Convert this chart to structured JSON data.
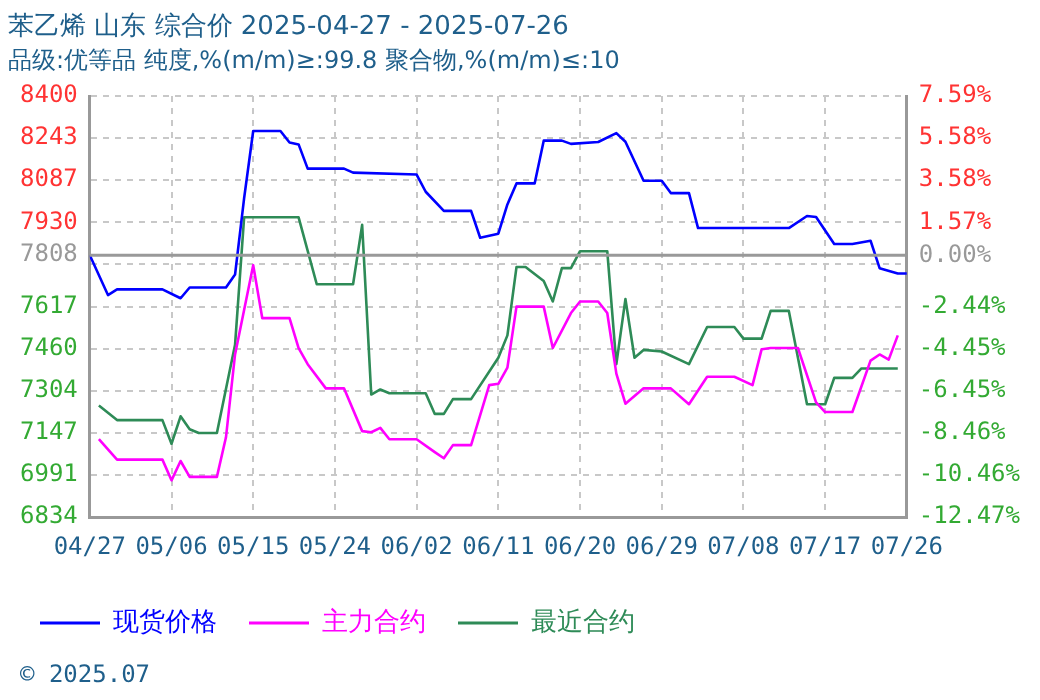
{
  "chart_data": {
    "type": "line",
    "title": "苯乙烯 山东 综合价 2025-04-27 - 2025-07-26",
    "subtitle": "品级:优等品 纯度,%(m/m)≥:99.8 聚合物,%(m/m)≤:10",
    "xlim": [
      "2025-04-27",
      "2025-07-26"
    ],
    "xticks": [
      {
        "value": "2025-04-27",
        "label": "04/27"
      },
      {
        "value": "2025-05-06",
        "label": "05/06"
      },
      {
        "value": "2025-05-15",
        "label": "05/15"
      },
      {
        "value": "2025-05-24",
        "label": "05/24"
      },
      {
        "value": "2025-06-02",
        "label": "06/02"
      },
      {
        "value": "2025-06-11",
        "label": "06/11"
      },
      {
        "value": "2025-06-20",
        "label": "06/20"
      },
      {
        "value": "2025-06-29",
        "label": "06/29"
      },
      {
        "value": "2025-07-08",
        "label": "07/08"
      },
      {
        "value": "2025-07-17",
        "label": "07/17"
      },
      {
        "value": "2025-07-26",
        "label": "07/26"
      }
    ],
    "ylim": [
      6834,
      8400
    ],
    "yticks": [
      6834,
      6991,
      7147,
      7304,
      7460,
      7617,
      {
        "value": 7774,
        "label": null
      },
      7930,
      8087,
      8243,
      8400
    ],
    "y2lim": [
      -12.47,
      7.59
    ],
    "y2ticks": [
      {
        "value": -12.47,
        "label": "-12.47%"
      },
      {
        "value": -10.46,
        "label": "-10.46%"
      },
      {
        "value": -8.46,
        "label": "-8.46%"
      },
      {
        "value": -6.45,
        "label": "-6.45%"
      },
      {
        "value": -4.45,
        "label": "-4.45%"
      },
      {
        "value": -2.44,
        "label": "-2.44%"
      },
      {
        "value": 0,
        "label": "0.00%"
      },
      {
        "value": 1.57,
        "label": "1.57%"
      },
      {
        "value": 3.58,
        "label": "3.58%"
      },
      {
        "value": 5.58,
        "label": "5.58%"
      },
      {
        "value": 7.59,
        "label": "7.59%"
      }
    ],
    "ref_lines": [
      {
        "axis": "y",
        "value": 7808,
        "label": "7808",
        "color": "#999999"
      }
    ],
    "grid": true,
    "legend": "bottom",
    "marker": "none",
    "line_style": "solid",
    "annotations": [
      "© 2025.07"
    ],
    "series": [
      {
        "name": "现货价格",
        "color": "#0000ff",
        "x": [
          "2025-04-27",
          "2025-04-29",
          "2025-04-30",
          "2025-05-05",
          "2025-05-07",
          "2025-05-08",
          "2025-05-12",
          "2025-05-13",
          "2025-05-14",
          "2025-05-15",
          "2025-05-18",
          "2025-05-19",
          "2025-05-20",
          "2025-05-21",
          "2025-05-25",
          "2025-05-26",
          "2025-06-02",
          "2025-06-03",
          "2025-06-05",
          "2025-06-08",
          "2025-06-09",
          "2025-06-11",
          "2025-06-12",
          "2025-06-13",
          "2025-06-15",
          "2025-06-16",
          "2025-06-18",
          "2025-06-19",
          "2025-06-22",
          "2025-06-24",
          "2025-06-25",
          "2025-06-27",
          "2025-06-29",
          "2025-06-30",
          "2025-07-02",
          "2025-07-03",
          "2025-07-13",
          "2025-07-15",
          "2025-07-16",
          "2025-07-18",
          "2025-07-20",
          "2025-07-22",
          "2025-07-23",
          "2025-07-25",
          "2025-07-26"
        ],
        "values": [
          7808,
          7660,
          7681,
          7681,
          7648,
          7688,
          7688,
          7736,
          8020,
          8270,
          8270,
          8227,
          8220,
          8130,
          8130,
          8115,
          8108,
          8044,
          7973,
          7973,
          7873,
          7888,
          7997,
          8075,
          8075,
          8234,
          8234,
          8222,
          8229,
          8262,
          8230,
          8085,
          8085,
          8039,
          8039,
          7909,
          7909,
          7954,
          7950,
          7850,
          7850,
          7862,
          7760,
          7740,
          7740
        ]
      },
      {
        "name": "主力合约",
        "color": "#ff00ff",
        "x": [
          "2025-04-28",
          "2025-04-30",
          "2025-05-05",
          "2025-05-06",
          "2025-05-07",
          "2025-05-08",
          "2025-05-11",
          "2025-05-12",
          "2025-05-13",
          "2025-05-15",
          "2025-05-16",
          "2025-05-19",
          "2025-05-20",
          "2025-05-21",
          "2025-05-23",
          "2025-05-25",
          "2025-05-27",
          "2025-05-28",
          "2025-05-29",
          "2025-05-30",
          "2025-06-02",
          "2025-06-04",
          "2025-06-05",
          "2025-06-06",
          "2025-06-08",
          "2025-06-10",
          "2025-06-11",
          "2025-06-12",
          "2025-06-13",
          "2025-06-16",
          "2025-06-17",
          "2025-06-19",
          "2025-06-20",
          "2025-06-22",
          "2025-06-23",
          "2025-06-24",
          "2025-06-25",
          "2025-06-27",
          "2025-06-30",
          "2025-07-02",
          "2025-07-04",
          "2025-07-07",
          "2025-07-09",
          "2025-07-10",
          "2025-07-11",
          "2025-07-14",
          "2025-07-16",
          "2025-07-17",
          "2025-07-20",
          "2025-07-22",
          "2025-07-23",
          "2025-07-24",
          "2025-07-25"
        ],
        "values": [
          7124,
          7048,
          7048,
          6971,
          7043,
          6984,
          6984,
          7131,
          7439,
          7771,
          7574,
          7574,
          7463,
          7403,
          7313,
          7313,
          7154,
          7150,
          7166,
          7124,
          7124,
          7076,
          7053,
          7102,
          7102,
          7325,
          7330,
          7390,
          7617,
          7617,
          7463,
          7593,
          7636,
          7636,
          7593,
          7368,
          7256,
          7313,
          7313,
          7254,
          7356,
          7356,
          7325,
          7458,
          7463,
          7463,
          7261,
          7225,
          7225,
          7416,
          7439,
          7420,
          7510
        ]
      },
      {
        "name": "最近合约",
        "color": "#2e8b57",
        "x": [
          "2025-04-28",
          "2025-04-30",
          "2025-05-05",
          "2025-05-06",
          "2025-05-07",
          "2025-05-08",
          "2025-05-09",
          "2025-05-11",
          "2025-05-13",
          "2025-05-14",
          "2025-05-20",
          "2025-05-22",
          "2025-05-26",
          "2025-05-27",
          "2025-05-28",
          "2025-05-29",
          "2025-05-30",
          "2025-06-03",
          "2025-06-04",
          "2025-06-05",
          "2025-06-06",
          "2025-06-08",
          "2025-06-11",
          "2025-06-12",
          "2025-06-13",
          "2025-06-14",
          "2025-06-16",
          "2025-06-17",
          "2025-06-18",
          "2025-06-19",
          "2025-06-20",
          "2025-06-23",
          "2025-06-24",
          "2025-06-25",
          "2025-06-26",
          "2025-06-27",
          "2025-06-29",
          "2025-07-02",
          "2025-07-04",
          "2025-07-07",
          "2025-07-08",
          "2025-07-10",
          "2025-07-11",
          "2025-07-13",
          "2025-07-15",
          "2025-07-17",
          "2025-07-18",
          "2025-07-20",
          "2025-07-21",
          "2025-07-25"
        ],
        "values": [
          7249,
          7195,
          7195,
          7107,
          7209,
          7161,
          7147,
          7147,
          7475,
          7949,
          7949,
          7700,
          7700,
          7921,
          7290,
          7309,
          7295,
          7295,
          7218,
          7218,
          7273,
          7273,
          7427,
          7510,
          7764,
          7764,
          7712,
          7636,
          7760,
          7760,
          7823,
          7823,
          7403,
          7645,
          7427,
          7456,
          7450,
          7403,
          7541,
          7541,
          7498,
          7498,
          7601,
          7601,
          7254,
          7254,
          7352,
          7352,
          7387,
          7387
        ]
      }
    ]
  }
}
